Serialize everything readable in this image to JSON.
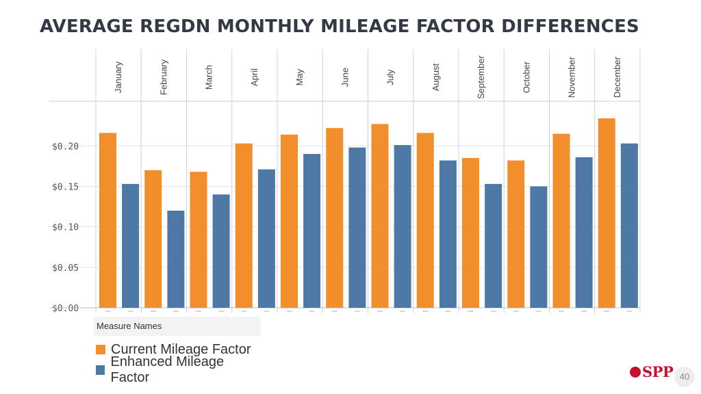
{
  "slide": {
    "title": "AVERAGE REGDN MONTHLY MILEAGE FACTOR DIFFERENCES",
    "page_number": "40",
    "logo_text": "SPP",
    "logo_color": "#c8102e"
  },
  "legend": {
    "title": "Measure Names",
    "items": [
      {
        "label": "Current Mileage Factor",
        "color": "#f28e2b"
      },
      {
        "label": "Enhanced Mileage Factor",
        "color": "#4e79a7"
      }
    ]
  },
  "chart_data": {
    "type": "bar",
    "title": "",
    "categories": [
      "January",
      "February",
      "March",
      "April",
      "May",
      "June",
      "July",
      "August",
      "September",
      "October",
      "November",
      "December"
    ],
    "series": [
      {
        "name": "Current Mileage Factor",
        "color": "#f28e2b",
        "values": [
          0.216,
          0.17,
          0.168,
          0.203,
          0.214,
          0.222,
          0.227,
          0.216,
          0.185,
          0.182,
          0.215,
          0.234
        ]
      },
      {
        "name": "Enhanced Mileage Factor",
        "color": "#4e79a7",
        "values": [
          0.153,
          0.12,
          0.14,
          0.171,
          0.19,
          0.198,
          0.201,
          0.182,
          0.153,
          0.15,
          0.186,
          0.203
        ]
      }
    ],
    "y_ticks": [
      "$0.00",
      "$0.05",
      "$0.10",
      "$0.15",
      "$0.20"
    ],
    "y_tick_values": [
      0,
      0.05,
      0.1,
      0.15,
      0.2
    ],
    "ylim": [
      0,
      0.245
    ],
    "xlabel": "",
    "ylabel": "",
    "grid": true,
    "legend_position": "bottom-left"
  }
}
